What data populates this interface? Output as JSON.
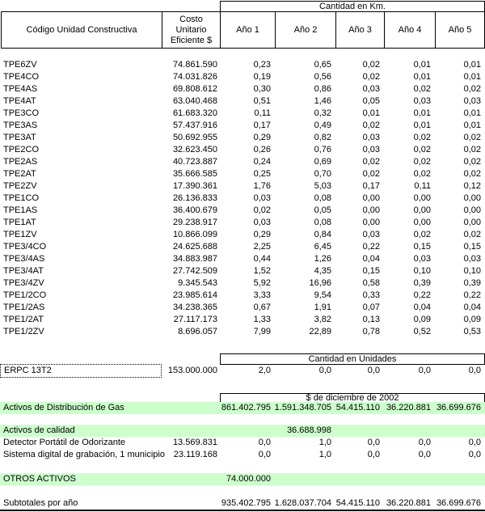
{
  "colors": {
    "highlight_green": "#ccffcc",
    "border": "#000000"
  },
  "table": {
    "header": {
      "col_code": "Código Unidad Constructiva",
      "col_cost": "Costo Unitario Eficiente $",
      "km_group": "Cantidad en Km.",
      "years": [
        "Año 1",
        "Año 2",
        "Año 3",
        "Año 4",
        "Año 5"
      ]
    },
    "rows": [
      {
        "code": "TPE6ZV",
        "cost": "74.861.590",
        "values": [
          "0,23",
          "0,65",
          "0,02",
          "0,01",
          "0,01"
        ]
      },
      {
        "code": "TPE4CO",
        "cost": "74.031.826",
        "values": [
          "0,19",
          "0,56",
          "0,02",
          "0,01",
          "0,01"
        ]
      },
      {
        "code": "TPE4AS",
        "cost": "69.808.612",
        "values": [
          "0,30",
          "0,86",
          "0,03",
          "0,02",
          "0,02"
        ]
      },
      {
        "code": "TPE4AT",
        "cost": "63.040.468",
        "values": [
          "0,51",
          "1,46",
          "0,05",
          "0,03",
          "0,03"
        ]
      },
      {
        "code": "TPE3CO",
        "cost": "61.683.320",
        "values": [
          "0,11",
          "0,32",
          "0,01",
          "0,01",
          "0,01"
        ]
      },
      {
        "code": "TPE3AS",
        "cost": "57.437.916",
        "values": [
          "0,17",
          "0,49",
          "0,02",
          "0,01",
          "0,01"
        ]
      },
      {
        "code": "TPE3AT",
        "cost": "50.692.955",
        "values": [
          "0,29",
          "0,82",
          "0,03",
          "0,02",
          "0,02"
        ]
      },
      {
        "code": "TPE2CO",
        "cost": "32.623.450",
        "values": [
          "0,26",
          "0,76",
          "0,03",
          "0,02",
          "0,02"
        ]
      },
      {
        "code": "TPE2AS",
        "cost": "40.723.887",
        "values": [
          "0,24",
          "0,69",
          "0,02",
          "0,02",
          "0,02"
        ]
      },
      {
        "code": "TPE2AT",
        "cost": "35.666.585",
        "values": [
          "0,25",
          "0,70",
          "0,02",
          "0,02",
          "0,02"
        ]
      },
      {
        "code": "TPE2ZV",
        "cost": "17.390.361",
        "values": [
          "1,76",
          "5,03",
          "0,17",
          "0,11",
          "0,12"
        ]
      },
      {
        "code": "TPE1CO",
        "cost": "26.136.833",
        "values": [
          "0,03",
          "0,08",
          "0,00",
          "0,00",
          "0,00"
        ]
      },
      {
        "code": "TPE1AS",
        "cost": "36.400.679",
        "values": [
          "0,02",
          "0,05",
          "0,00",
          "0,00",
          "0,00"
        ]
      },
      {
        "code": "TPE1AT",
        "cost": "29.238.917",
        "values": [
          "0,03",
          "0,08",
          "0,00",
          "0,00",
          "0,00"
        ]
      },
      {
        "code": "TPE1ZV",
        "cost": "10.866.099",
        "values": [
          "0,29",
          "0,84",
          "0,03",
          "0,02",
          "0,02"
        ]
      },
      {
        "code": "TPE3/4CO",
        "cost": "24.625.688",
        "values": [
          "2,25",
          "6,45",
          "0,22",
          "0,15",
          "0,15"
        ]
      },
      {
        "code": "TPE3/4AS",
        "cost": "34.883.987",
        "values": [
          "0,44",
          "1,26",
          "0,04",
          "0,03",
          "0,03"
        ]
      },
      {
        "code": "TPE3/4AT",
        "cost": "27.742.509",
        "values": [
          "1,52",
          "4,35",
          "0,15",
          "0,10",
          "0,10"
        ]
      },
      {
        "code": "TPE3/4ZV",
        "cost": "9.345.543",
        "values": [
          "5,92",
          "16,96",
          "0,58",
          "0,39",
          "0,39"
        ]
      },
      {
        "code": "TPE1/2CO",
        "cost": "23.985.614",
        "values": [
          "3,33",
          "9,54",
          "0,33",
          "0,22",
          "0,22"
        ]
      },
      {
        "code": "TPE1/2AS",
        "cost": "34.238.365",
        "values": [
          "0,67",
          "1,91",
          "0,07",
          "0,04",
          "0,04"
        ]
      },
      {
        "code": "TPE1/2AT",
        "cost": "27.117.173",
        "values": [
          "1,33",
          "3,82",
          "0,13",
          "0,09",
          "0,09"
        ]
      },
      {
        "code": "TPE1/2ZV",
        "cost": "8.696.057",
        "values": [
          "7,99",
          "22,89",
          "0,78",
          "0,52",
          "0,53"
        ]
      }
    ],
    "units_section": {
      "group_label": "Cantidad en Unidades",
      "row": {
        "code": "ERPC 13T2",
        "cost": "153.000.000",
        "values": [
          "2,0",
          "0,0",
          "0,0",
          "0,0",
          "0,0"
        ]
      }
    },
    "pesos_section": {
      "group_label": "$ de diciembre de 2002",
      "distribution_row": {
        "label": "Activos de Distribución de Gas",
        "values": [
          "861.402.795",
          "1.591.348.705",
          "54.415.110",
          "36.220.881",
          "36.699.676"
        ]
      },
      "quality_header": {
        "label": "Activos de calidad",
        "value": "36.688.998"
      },
      "quality_rows": [
        {
          "label": "Detector Portátil de Odorizante",
          "cost": "13.569.831",
          "values": [
            "0,0",
            "1,0",
            "0,0",
            "0,0",
            "0,0"
          ]
        },
        {
          "label": "Sistema digital de grabación, 1 municipio",
          "cost": "23.119.168",
          "values": [
            "0,0",
            "1,0",
            "0,0",
            "0,0",
            "0,0"
          ]
        }
      ],
      "otros_row": {
        "label": "OTROS ACTIVOS",
        "value": "74.000.000"
      },
      "subtotals_row": {
        "label": "Subtotales por año",
        "values": [
          "935.402.795",
          "1.628.037.704",
          "54.415.110",
          "36.220.881",
          "36.699.676"
        ]
      }
    }
  }
}
